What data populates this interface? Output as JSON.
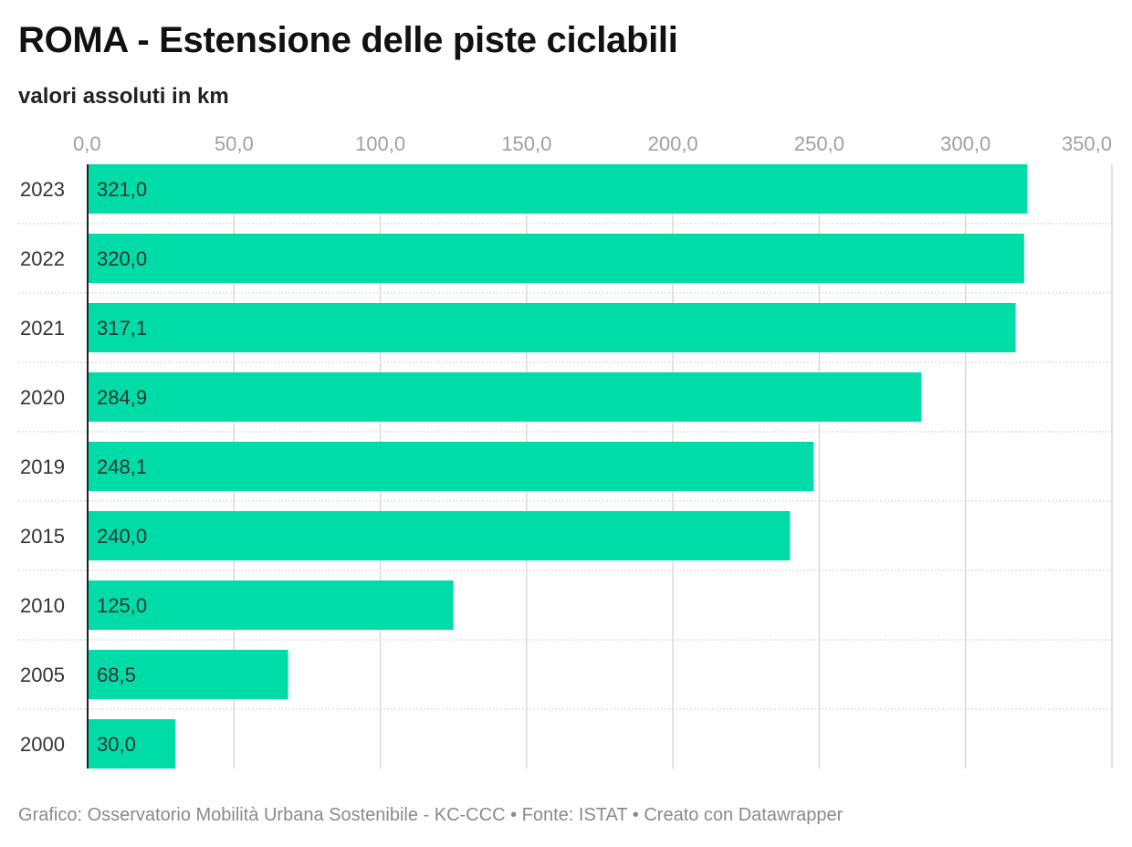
{
  "header": {
    "title": "ROMA - Estensione delle piste ciclabili",
    "subtitle": "valori assoluti in km"
  },
  "footer": {
    "text": "Grafico: Osservatorio Mobilità Urbana Sostenibile - KC-CCC • Fonte: ISTAT • Creato con Datawrapper"
  },
  "chart_data": {
    "type": "bar",
    "orientation": "horizontal",
    "categories": [
      "2023",
      "2022",
      "2021",
      "2020",
      "2019",
      "2015",
      "2010",
      "2005",
      "2000"
    ],
    "values": [
      321.0,
      320.0,
      317.1,
      284.9,
      248.1,
      240.0,
      125.0,
      68.5,
      30.0
    ],
    "value_labels": [
      "321,0",
      "320,0",
      "317,1",
      "284,9",
      "248,1",
      "240,0",
      "125,0",
      "68,5",
      "30,0"
    ],
    "x_ticks": [
      0,
      50,
      100,
      150,
      200,
      250,
      300,
      350
    ],
    "x_tick_labels": [
      "0,0",
      "50,0",
      "100,0",
      "150,0",
      "200,0",
      "250,0",
      "300,0",
      "350,0"
    ],
    "xlim": [
      0,
      350
    ],
    "tick_position": "top",
    "grid": true,
    "legend": "none",
    "colors": {
      "bar": "#00dca8",
      "grid": "#d9d9d9",
      "tick_label": "#a0a0a0",
      "category_label": "#333333",
      "value_label": "#333333",
      "axis": "#222222"
    }
  }
}
